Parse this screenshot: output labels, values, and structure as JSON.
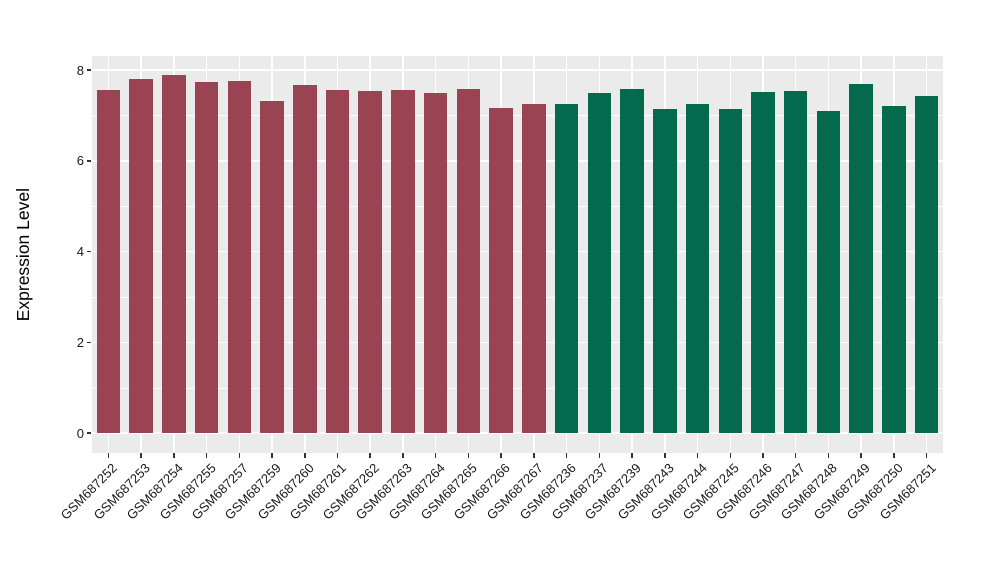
{
  "chart_data": {
    "type": "bar",
    "title": "",
    "xlabel": "",
    "ylabel": "Expression Level",
    "ylim": [
      0,
      8.3
    ],
    "yticks": [
      0,
      2,
      4,
      6,
      8
    ],
    "yticks_minor": [
      1,
      3,
      5,
      7
    ],
    "grid": true,
    "legend_position": "none",
    "panel_background": "#EBEBEB",
    "grid_color": "#FFFFFF",
    "groups": [
      {
        "name": "group-1",
        "color": "#9A4352"
      },
      {
        "name": "group-2",
        "color": "#046A4D"
      }
    ],
    "categories": [
      "GSM687252",
      "GSM687253",
      "GSM687254",
      "GSM687255",
      "GSM687257",
      "GSM687259",
      "GSM687260",
      "GSM687261",
      "GSM687262",
      "GSM687263",
      "GSM687264",
      "GSM687265",
      "GSM687266",
      "GSM687267",
      "GSM687236",
      "GSM687237",
      "GSM687239",
      "GSM687243",
      "GSM687244",
      "GSM687245",
      "GSM687246",
      "GSM687247",
      "GSM687248",
      "GSM687249",
      "GSM687250",
      "GSM687251"
    ],
    "values": [
      7.56,
      7.81,
      7.9,
      7.73,
      7.75,
      7.32,
      7.67,
      7.56,
      7.53,
      7.57,
      7.5,
      7.59,
      7.16,
      7.24,
      7.25,
      7.5,
      7.58,
      7.15,
      7.24,
      7.13,
      7.52,
      7.54,
      7.1,
      7.69,
      7.2,
      7.42
    ],
    "bar_groups": [
      0,
      0,
      0,
      0,
      0,
      0,
      0,
      0,
      0,
      0,
      0,
      0,
      0,
      0,
      1,
      1,
      1,
      1,
      1,
      1,
      1,
      1,
      1,
      1,
      1,
      1
    ]
  }
}
